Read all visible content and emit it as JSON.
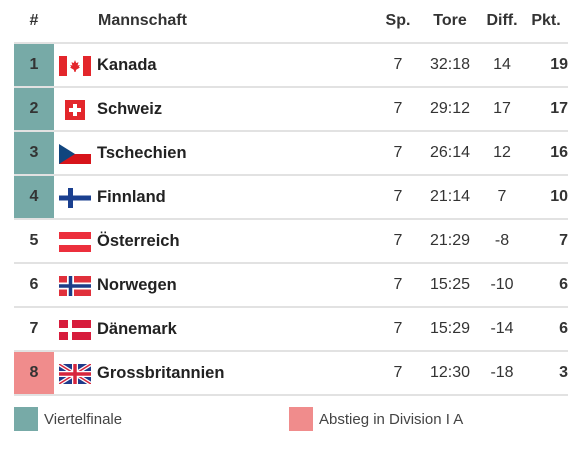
{
  "header": {
    "rank": "#",
    "team": "Mannschaft",
    "played": "Sp.",
    "goals": "Tore",
    "diff": "Diff.",
    "points": "Pkt."
  },
  "rows": [
    {
      "rank": "1",
      "team": "Kanada",
      "flag": "canada-flag-icon",
      "played": "7",
      "goals": "32:18",
      "diff": "14",
      "points": "19",
      "status": "qualified"
    },
    {
      "rank": "2",
      "team": "Schweiz",
      "flag": "switzerland-flag-icon",
      "played": "7",
      "goals": "29:12",
      "diff": "17",
      "points": "17",
      "status": "qualified"
    },
    {
      "rank": "3",
      "team": "Tschechien",
      "flag": "czech-flag-icon",
      "played": "7",
      "goals": "26:14",
      "diff": "12",
      "points": "16",
      "status": "qualified"
    },
    {
      "rank": "4",
      "team": "Finnland",
      "flag": "finland-flag-icon",
      "played": "7",
      "goals": "21:14",
      "diff": "7",
      "points": "10",
      "status": "qualified"
    },
    {
      "rank": "5",
      "team": "Österreich",
      "flag": "austria-flag-icon",
      "played": "7",
      "goals": "21:29",
      "diff": "-8",
      "points": "7",
      "status": "none"
    },
    {
      "rank": "6",
      "team": "Norwegen",
      "flag": "norway-flag-icon",
      "played": "7",
      "goals": "15:25",
      "diff": "-10",
      "points": "6",
      "status": "none"
    },
    {
      "rank": "7",
      "team": "Dänemark",
      "flag": "denmark-flag-icon",
      "played": "7",
      "goals": "15:29",
      "diff": "-14",
      "points": "6",
      "status": "none"
    },
    {
      "rank": "8",
      "team": "Grossbritannien",
      "flag": "uk-flag-icon",
      "played": "7",
      "goals": "12:30",
      "diff": "-18",
      "points": "3",
      "status": "relegated"
    }
  ],
  "legend": {
    "qualified_label": "Viertelfinale",
    "relegated_label": "Abstieg in Division I A"
  },
  "colors": {
    "qualified": "#77aaa7",
    "relegated": "#f08c8c"
  }
}
